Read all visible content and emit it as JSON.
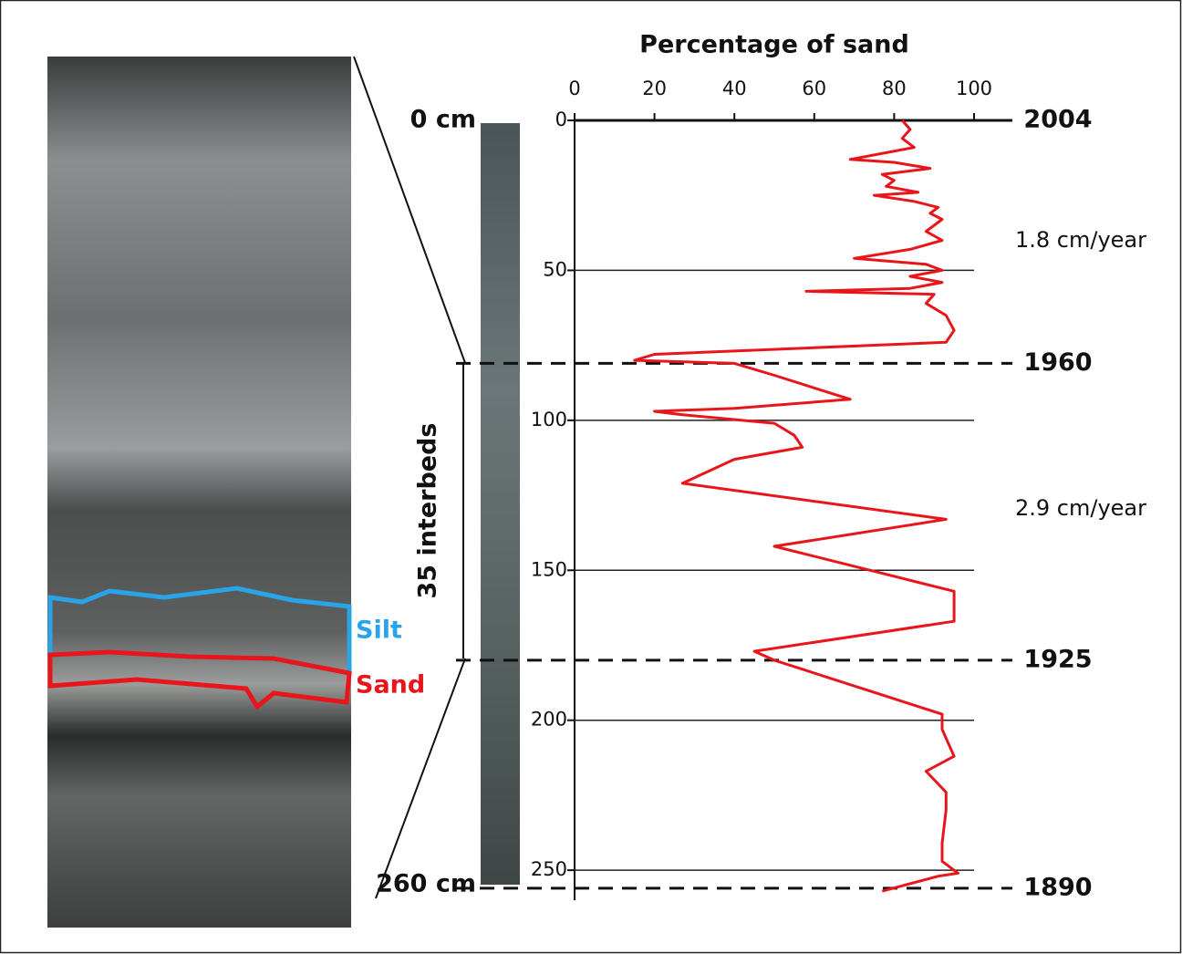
{
  "chart_data": {
    "type": "line",
    "title": "Percentage of sand",
    "color": "#e8161b",
    "xlim": [
      0,
      100
    ],
    "xticks": [
      0,
      20,
      40,
      60,
      80,
      100
    ],
    "ylim": [
      0,
      260
    ],
    "yticks": [
      0,
      50,
      100,
      150,
      200,
      250
    ],
    "y_inverted": true,
    "grid": true,
    "y": [
      0,
      3,
      6,
      9,
      13,
      14,
      16,
      18,
      20,
      22,
      24,
      25,
      27,
      29,
      31,
      33,
      37,
      40,
      43,
      46,
      48,
      50,
      52,
      54,
      56,
      57,
      58,
      61,
      65,
      70,
      74,
      78,
      80,
      81,
      85,
      93,
      96,
      97,
      98,
      101,
      105,
      109,
      113,
      121,
      133,
      142,
      157,
      167,
      177,
      180,
      198,
      203,
      212,
      217,
      224,
      230,
      241,
      247,
      251,
      252,
      257
    ],
    "values": [
      82,
      84,
      82,
      85,
      69,
      80,
      89,
      77,
      80,
      78,
      86,
      75,
      85,
      91,
      89,
      92,
      88,
      92,
      84,
      70,
      88,
      92,
      84,
      92,
      84,
      58,
      90,
      88,
      93,
      95,
      93,
      20,
      15,
      40,
      50,
      69,
      40,
      20,
      26,
      50,
      55,
      57,
      40,
      27,
      93,
      50,
      95,
      95,
      45,
      50,
      92,
      92,
      95,
      88,
      93,
      93,
      92,
      92,
      96,
      91,
      77
    ],
    "markers": [
      {
        "value": 0,
        "label": "2004",
        "dashed": false
      },
      {
        "value": 81,
        "label": "1960",
        "dashed": true
      },
      {
        "value": 180,
        "label": "1925",
        "dashed": true
      },
      {
        "value": 256,
        "label": "1890",
        "dashed": true
      }
    ],
    "annotations": [
      "1.8 cm/year",
      "2.9 cm/year"
    ]
  },
  "core_labels": {
    "top": "0 cm",
    "bottom": "260 cm",
    "interbeds": "35 interbeds",
    "silt": "Silt",
    "sand": "Sand"
  }
}
